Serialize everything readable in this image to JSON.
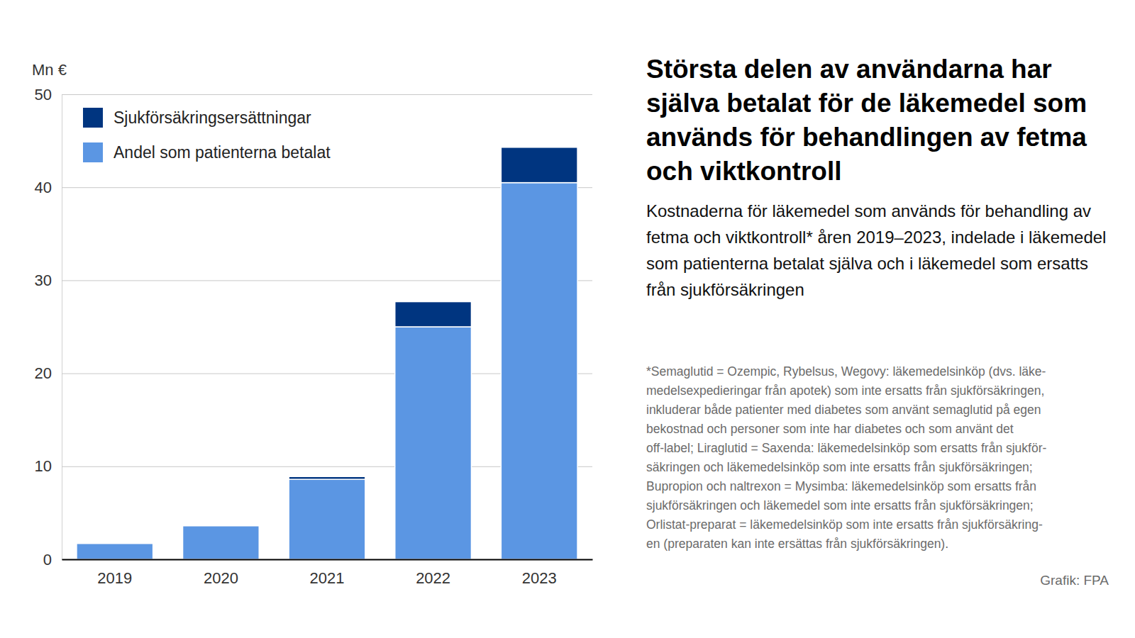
{
  "chart_data": {
    "type": "bar",
    "stacked": true,
    "title": "Största delen av användarna har själva betalat för de läkemedel som används för behandlingen av fetma och viktkontroll",
    "subtitle": "Kostnaderna för läkemedel som används för behandling av fetma och viktkontroll* åren 2019–2023, indelade i läkemedel som patienterna betalat själva och i läkemedel som ersatts från sjukförsäkringen",
    "y_label": "Mn €",
    "footnote": [
      "*Semaglutid = Ozempic, Rybelsus, Wegovy: läkemedelsinköp (dvs. läke-",
      "medelsexpedieringar från apotek) som inte ersatts från sjukförsäkringen,",
      "inkluderar både patienter med diabetes som använt semaglutid på egen",
      "bekostnad och personer som inte har diabetes och som använt det",
      "off-label; Liraglutid = Saxenda: läkemedelsinköp som ersatts från sjukför-",
      "säkringen och läkemedelsinköp som inte ersatts från sjukförsäkringen;",
      "Bupropion och naltrexon = Mysimba: läkemedelsinköp som ersatts från",
      "sjukförsäkringen och läkemedel som inte ersatts från sjukförsäkringen;",
      "Orlistat-preparat = läkemedelsinköp som inte ersatts från sjukförsäkring-",
      "en (preparaten kan inte ersättas från sjukförsäkringen)."
    ],
    "source": "Grafik: FPA",
    "categories": [
      "2019",
      "2020",
      "2021",
      "2022",
      "2023"
    ],
    "series": [
      {
        "name": "Andel som patienterna betalat",
        "color": "#5b96e3",
        "values": [
          1.7,
          3.6,
          8.6,
          25.0,
          40.5
        ]
      },
      {
        "name": "Sjukförsäkringsersättningar",
        "color": "#003580",
        "values": [
          0.0,
          0.0,
          0.3,
          2.7,
          3.8
        ]
      }
    ],
    "ylim": [
      0,
      50
    ],
    "yticks": [
      0,
      10,
      20,
      30,
      40,
      50
    ],
    "grid": true,
    "legend": "top-left"
  }
}
